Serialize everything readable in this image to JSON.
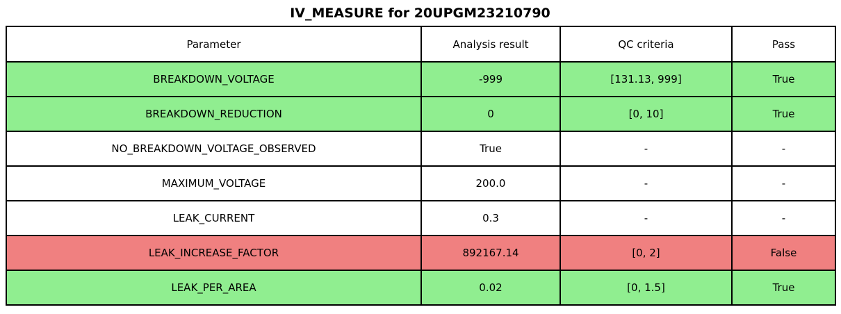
{
  "title": "IV_MEASURE for 20UPGM23210790",
  "chart_data": {
    "type": "table",
    "title": "IV_MEASURE for 20UPGM23210790",
    "columns": [
      "Parameter",
      "Analysis result",
      "QC criteria",
      "Pass"
    ],
    "rows": [
      {
        "parameter": "BREAKDOWN_VOLTAGE",
        "analysis_result": "-999",
        "qc_criteria": "[131.13, 999]",
        "pass": "True",
        "status": "pass"
      },
      {
        "parameter": "BREAKDOWN_REDUCTION",
        "analysis_result": "0",
        "qc_criteria": "[0, 10]",
        "pass": "True",
        "status": "pass"
      },
      {
        "parameter": "NO_BREAKDOWN_VOLTAGE_OBSERVED",
        "analysis_result": "True",
        "qc_criteria": "-",
        "pass": "-",
        "status": "neutral"
      },
      {
        "parameter": "MAXIMUM_VOLTAGE",
        "analysis_result": "200.0",
        "qc_criteria": "-",
        "pass": "-",
        "status": "neutral"
      },
      {
        "parameter": "LEAK_CURRENT",
        "analysis_result": "0.3",
        "qc_criteria": "-",
        "pass": "-",
        "status": "neutral"
      },
      {
        "parameter": "LEAK_INCREASE_FACTOR",
        "analysis_result": "892167.14",
        "qc_criteria": "[0, 2]",
        "pass": "False",
        "status": "fail"
      },
      {
        "parameter": "LEAK_PER_AREA",
        "analysis_result": "0.02",
        "qc_criteria": "[0, 1.5]",
        "pass": "True",
        "status": "pass"
      }
    ],
    "status_colors": {
      "pass": "#90EE90",
      "fail": "#F08080",
      "neutral": "#FFFFFF"
    },
    "border_color": "#000000",
    "layout": {
      "grid": true,
      "header_background": "#FFFFFF",
      "text_align": "center"
    }
  }
}
